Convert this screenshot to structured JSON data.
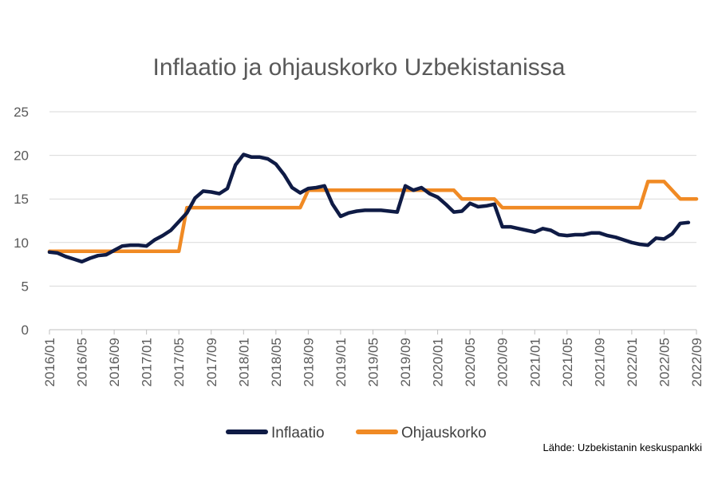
{
  "chart_data": {
    "type": "line",
    "title": "Inflaatio ja ohjauskorko Uzbekistanissa",
    "source": "Lähde: Uzbekistanin keskuspankki",
    "xlabel": "",
    "ylabel": "",
    "ylim": [
      0,
      25
    ],
    "yticks": [
      "0",
      "5",
      "10",
      "15",
      "20",
      "25"
    ],
    "grid": true,
    "legend_position": "bottom",
    "x_tick_labels": [
      "2016/01",
      "2016/05",
      "2016/09",
      "2017/01",
      "2017/05",
      "2017/09",
      "2018/01",
      "2018/05",
      "2018/09",
      "2019/01",
      "2019/05",
      "2019/09",
      "2020/01",
      "2020/05",
      "2020/09",
      "2021/01",
      "2021/05",
      "2021/09",
      "2022/01",
      "2022/05",
      "2022/09"
    ],
    "x_start": "2016/01",
    "x_end": "2022/09",
    "series": [
      {
        "name": "Inflaatio",
        "color": "#0f1b45",
        "points": [
          [
            "2016/01",
            8.9
          ],
          [
            "2016/02",
            8.8
          ],
          [
            "2016/03",
            8.4
          ],
          [
            "2016/04",
            8.1
          ],
          [
            "2016/05",
            7.8
          ],
          [
            "2016/06",
            8.2
          ],
          [
            "2016/07",
            8.5
          ],
          [
            "2016/08",
            8.6
          ],
          [
            "2016/09",
            9.1
          ],
          [
            "2016/10",
            9.6
          ],
          [
            "2016/11",
            9.7
          ],
          [
            "2016/12",
            9.7
          ],
          [
            "2017/01",
            9.6
          ],
          [
            "2017/02",
            10.3
          ],
          [
            "2017/03",
            10.8
          ],
          [
            "2017/04",
            11.4
          ],
          [
            "2017/05",
            12.4
          ],
          [
            "2017/06",
            13.4
          ],
          [
            "2017/07",
            15.1
          ],
          [
            "2017/08",
            15.9
          ],
          [
            "2017/09",
            15.8
          ],
          [
            "2017/10",
            15.6
          ],
          [
            "2017/11",
            16.2
          ],
          [
            "2017/12",
            18.9
          ],
          [
            "2018/01",
            20.1
          ],
          [
            "2018/02",
            19.8
          ],
          [
            "2018/03",
            19.8
          ],
          [
            "2018/04",
            19.6
          ],
          [
            "2018/05",
            19.0
          ],
          [
            "2018/06",
            17.8
          ],
          [
            "2018/07",
            16.3
          ],
          [
            "2018/08",
            15.7
          ],
          [
            "2018/09",
            16.2
          ],
          [
            "2018/10",
            16.3
          ],
          [
            "2018/11",
            16.5
          ],
          [
            "2018/12",
            14.4
          ],
          [
            "2019/01",
            13.0
          ],
          [
            "2019/02",
            13.4
          ],
          [
            "2019/03",
            13.6
          ],
          [
            "2019/04",
            13.7
          ],
          [
            "2019/05",
            13.7
          ],
          [
            "2019/06",
            13.7
          ],
          [
            "2019/07",
            13.6
          ],
          [
            "2019/08",
            13.5
          ],
          [
            "2019/09",
            16.5
          ],
          [
            "2019/10",
            16.0
          ],
          [
            "2019/11",
            16.3
          ],
          [
            "2019/12",
            15.6
          ],
          [
            "2020/01",
            15.2
          ],
          [
            "2020/02",
            14.4
          ],
          [
            "2020/03",
            13.5
          ],
          [
            "2020/04",
            13.6
          ],
          [
            "2020/05",
            14.5
          ],
          [
            "2020/06",
            14.1
          ],
          [
            "2020/07",
            14.2
          ],
          [
            "2020/08",
            14.4
          ],
          [
            "2020/09",
            11.8
          ],
          [
            "2020/10",
            11.8
          ],
          [
            "2020/11",
            11.6
          ],
          [
            "2020/12",
            11.4
          ],
          [
            "2021/01",
            11.2
          ],
          [
            "2021/02",
            11.6
          ],
          [
            "2021/03",
            11.4
          ],
          [
            "2021/04",
            10.9
          ],
          [
            "2021/05",
            10.8
          ],
          [
            "2021/06",
            10.9
          ],
          [
            "2021/07",
            10.9
          ],
          [
            "2021/08",
            11.1
          ],
          [
            "2021/09",
            11.1
          ],
          [
            "2021/10",
            10.8
          ],
          [
            "2021/11",
            10.6
          ],
          [
            "2021/12",
            10.3
          ],
          [
            "2022/01",
            10.0
          ],
          [
            "2022/02",
            9.8
          ],
          [
            "2022/03",
            9.7
          ],
          [
            "2022/04",
            10.5
          ],
          [
            "2022/05",
            10.4
          ],
          [
            "2022/06",
            11.0
          ],
          [
            "2022/07",
            12.2
          ],
          [
            "2022/08",
            12.3
          ]
        ]
      },
      {
        "name": "Ohjauskorko",
        "color": "#f08a24",
        "points": [
          [
            "2016/01",
            9
          ],
          [
            "2017/05",
            9
          ],
          [
            "2017/06",
            14
          ],
          [
            "2018/08",
            14
          ],
          [
            "2018/09",
            16
          ],
          [
            "2020/03",
            16
          ],
          [
            "2020/04",
            15
          ],
          [
            "2020/08",
            15
          ],
          [
            "2020/09",
            14
          ],
          [
            "2022/02",
            14
          ],
          [
            "2022/03",
            17
          ],
          [
            "2022/05",
            17
          ],
          [
            "2022/07",
            15
          ],
          [
            "2022/09",
            15
          ]
        ]
      }
    ]
  }
}
